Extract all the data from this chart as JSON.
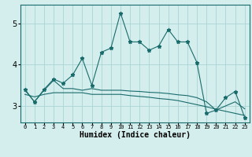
{
  "xlabel": "Humidex (Indice chaleur)",
  "bg_color": "#d4eeee",
  "grid_color": "#aad4d4",
  "line_color": "#1a6b6b",
  "x_values": [
    0,
    1,
    2,
    3,
    4,
    5,
    6,
    7,
    8,
    9,
    10,
    11,
    12,
    13,
    14,
    15,
    16,
    17,
    18,
    19,
    20,
    21,
    22,
    23
  ],
  "series1": [
    3.4,
    3.1,
    3.4,
    3.65,
    3.55,
    3.75,
    4.15,
    3.5,
    4.3,
    4.4,
    5.25,
    4.55,
    4.55,
    4.35,
    4.45,
    4.85,
    4.55,
    4.55,
    4.05,
    2.82,
    2.9,
    3.2,
    3.35,
    2.72
  ],
  "series2": [
    3.38,
    3.1,
    3.38,
    3.62,
    3.42,
    3.42,
    3.38,
    3.42,
    3.38,
    3.38,
    3.38,
    3.36,
    3.35,
    3.33,
    3.32,
    3.3,
    3.27,
    3.25,
    3.2,
    3.1,
    2.9,
    3.0,
    3.1,
    2.93
  ],
  "series3": [
    3.28,
    3.22,
    3.28,
    3.32,
    3.32,
    3.32,
    3.32,
    3.28,
    3.28,
    3.28,
    3.28,
    3.25,
    3.23,
    3.21,
    3.18,
    3.16,
    3.13,
    3.08,
    3.03,
    2.98,
    2.92,
    2.87,
    2.82,
    2.77
  ],
  "ylim": [
    2.6,
    5.45
  ],
  "yticks": [
    3,
    4,
    5
  ],
  "xlim": [
    -0.5,
    23.5
  ]
}
